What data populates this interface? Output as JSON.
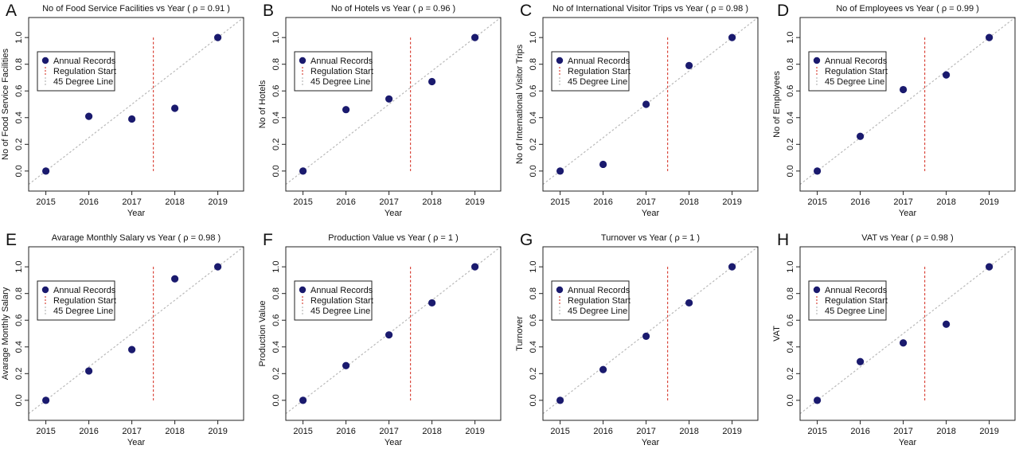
{
  "figure": {
    "legend_entries": [
      "Annual Records",
      "Regulation Start",
      "45 Degree Line"
    ],
    "colors": {
      "points": "#1a1a6e",
      "regulation_line": "#d9453a",
      "diagonal_line": "#b8b8b8",
      "axes": "#222222"
    }
  },
  "chart_data": [
    {
      "type": "scatter",
      "letter": "A",
      "title": "No of Food Service Facilities vs Year ( ρ = 0.91 )",
      "xlabel": "Year",
      "ylabel": "No of Food Service Facilities",
      "x": [
        2015,
        2016,
        2017,
        2018,
        2019
      ],
      "values": [
        0.0,
        0.41,
        0.39,
        0.47,
        1.0
      ],
      "xlim": [
        2014.6,
        2019.6
      ],
      "ylim": [
        -0.15,
        1.15
      ],
      "xticks": [
        "2015",
        "2016",
        "2017",
        "2018",
        "2019"
      ],
      "yticks": [
        "0.0",
        "0.2",
        "0.4",
        "0.6",
        "0.8",
        "1.0"
      ],
      "regulation_start": 2017.5,
      "grid": false,
      "legend_position": "top-left"
    },
    {
      "type": "scatter",
      "letter": "B",
      "title": "No of Hotels vs Year ( ρ = 0.96 )",
      "xlabel": "Year",
      "ylabel": "No of Hotels",
      "x": [
        2015,
        2016,
        2017,
        2018,
        2019
      ],
      "values": [
        0.0,
        0.46,
        0.54,
        0.67,
        1.0
      ],
      "xlim": [
        2014.6,
        2019.6
      ],
      "ylim": [
        -0.15,
        1.15
      ],
      "xticks": [
        "2015",
        "2016",
        "2017",
        "2018",
        "2019"
      ],
      "yticks": [
        "0.0",
        "0.2",
        "0.4",
        "0.6",
        "0.8",
        "1.0"
      ],
      "regulation_start": 2017.5,
      "grid": false,
      "legend_position": "top-left"
    },
    {
      "type": "scatter",
      "letter": "C",
      "title": "No of International Visitor Trips vs Year ( ρ = 0.98 )",
      "xlabel": "Year",
      "ylabel": "No of International Visitor Trips",
      "x": [
        2015,
        2016,
        2017,
        2018,
        2019
      ],
      "values": [
        0.0,
        0.05,
        0.5,
        0.79,
        1.0
      ],
      "xlim": [
        2014.6,
        2019.6
      ],
      "ylim": [
        -0.15,
        1.15
      ],
      "xticks": [
        "2015",
        "2016",
        "2017",
        "2018",
        "2019"
      ],
      "yticks": [
        "0.0",
        "0.2",
        "0.4",
        "0.6",
        "0.8",
        "1.0"
      ],
      "regulation_start": 2017.5,
      "grid": false,
      "legend_position": "top-left"
    },
    {
      "type": "scatter",
      "letter": "D",
      "title": "No of Employees vs Year ( ρ = 0.99 )",
      "xlabel": "Year",
      "ylabel": "No of Employees",
      "x": [
        2015,
        2016,
        2017,
        2018,
        2019
      ],
      "values": [
        0.0,
        0.26,
        0.61,
        0.72,
        1.0
      ],
      "xlim": [
        2014.6,
        2019.6
      ],
      "ylim": [
        -0.15,
        1.15
      ],
      "xticks": [
        "2015",
        "2016",
        "2017",
        "2018",
        "2019"
      ],
      "yticks": [
        "0.0",
        "0.2",
        "0.4",
        "0.6",
        "0.8",
        "1.0"
      ],
      "regulation_start": 2017.5,
      "grid": false,
      "legend_position": "top-left"
    },
    {
      "type": "scatter",
      "letter": "E",
      "title": "Avarage Monthly Salary vs Year ( ρ = 0.98 )",
      "xlabel": "Year",
      "ylabel": "Avarage Monthly Salary",
      "x": [
        2015,
        2016,
        2017,
        2018,
        2019
      ],
      "values": [
        0.0,
        0.22,
        0.38,
        0.91,
        1.0
      ],
      "xlim": [
        2014.6,
        2019.6
      ],
      "ylim": [
        -0.15,
        1.15
      ],
      "xticks": [
        "2015",
        "2016",
        "2017",
        "2018",
        "2019"
      ],
      "yticks": [
        "0.0",
        "0.2",
        "0.4",
        "0.6",
        "0.8",
        "1.0"
      ],
      "regulation_start": 2017.5,
      "grid": false,
      "legend_position": "top-left"
    },
    {
      "type": "scatter",
      "letter": "F",
      "title": "Production Value vs Year ( ρ = 1 )",
      "xlabel": "Year",
      "ylabel": "Production Value",
      "x": [
        2015,
        2016,
        2017,
        2018,
        2019
      ],
      "values": [
        0.0,
        0.26,
        0.49,
        0.73,
        1.0
      ],
      "xlim": [
        2014.6,
        2019.6
      ],
      "ylim": [
        -0.15,
        1.15
      ],
      "xticks": [
        "2015",
        "2016",
        "2017",
        "2018",
        "2019"
      ],
      "yticks": [
        "0.0",
        "0.2",
        "0.4",
        "0.6",
        "0.8",
        "1.0"
      ],
      "regulation_start": 2017.5,
      "grid": false,
      "legend_position": "top-left"
    },
    {
      "type": "scatter",
      "letter": "G",
      "title": "Turnover vs Year ( ρ = 1 )",
      "xlabel": "Year",
      "ylabel": "Turnover",
      "x": [
        2015,
        2016,
        2017,
        2018,
        2019
      ],
      "values": [
        0.0,
        0.23,
        0.48,
        0.73,
        1.0
      ],
      "xlim": [
        2014.6,
        2019.6
      ],
      "ylim": [
        -0.15,
        1.15
      ],
      "xticks": [
        "2015",
        "2016",
        "2017",
        "2018",
        "2019"
      ],
      "yticks": [
        "0.0",
        "0.2",
        "0.4",
        "0.6",
        "0.8",
        "1.0"
      ],
      "regulation_start": 2017.5,
      "grid": false,
      "legend_position": "top-left"
    },
    {
      "type": "scatter",
      "letter": "H",
      "title": "VAT vs Year ( ρ = 0.98 )",
      "xlabel": "Year",
      "ylabel": "VAT",
      "x": [
        2015,
        2016,
        2017,
        2018,
        2019
      ],
      "values": [
        0.0,
        0.29,
        0.43,
        0.57,
        1.0
      ],
      "xlim": [
        2014.6,
        2019.6
      ],
      "ylim": [
        -0.15,
        1.15
      ],
      "xticks": [
        "2015",
        "2016",
        "2017",
        "2018",
        "2019"
      ],
      "yticks": [
        "0.0",
        "0.2",
        "0.4",
        "0.6",
        "0.8",
        "1.0"
      ],
      "regulation_start": 2017.5,
      "grid": false,
      "legend_position": "top-left"
    }
  ]
}
